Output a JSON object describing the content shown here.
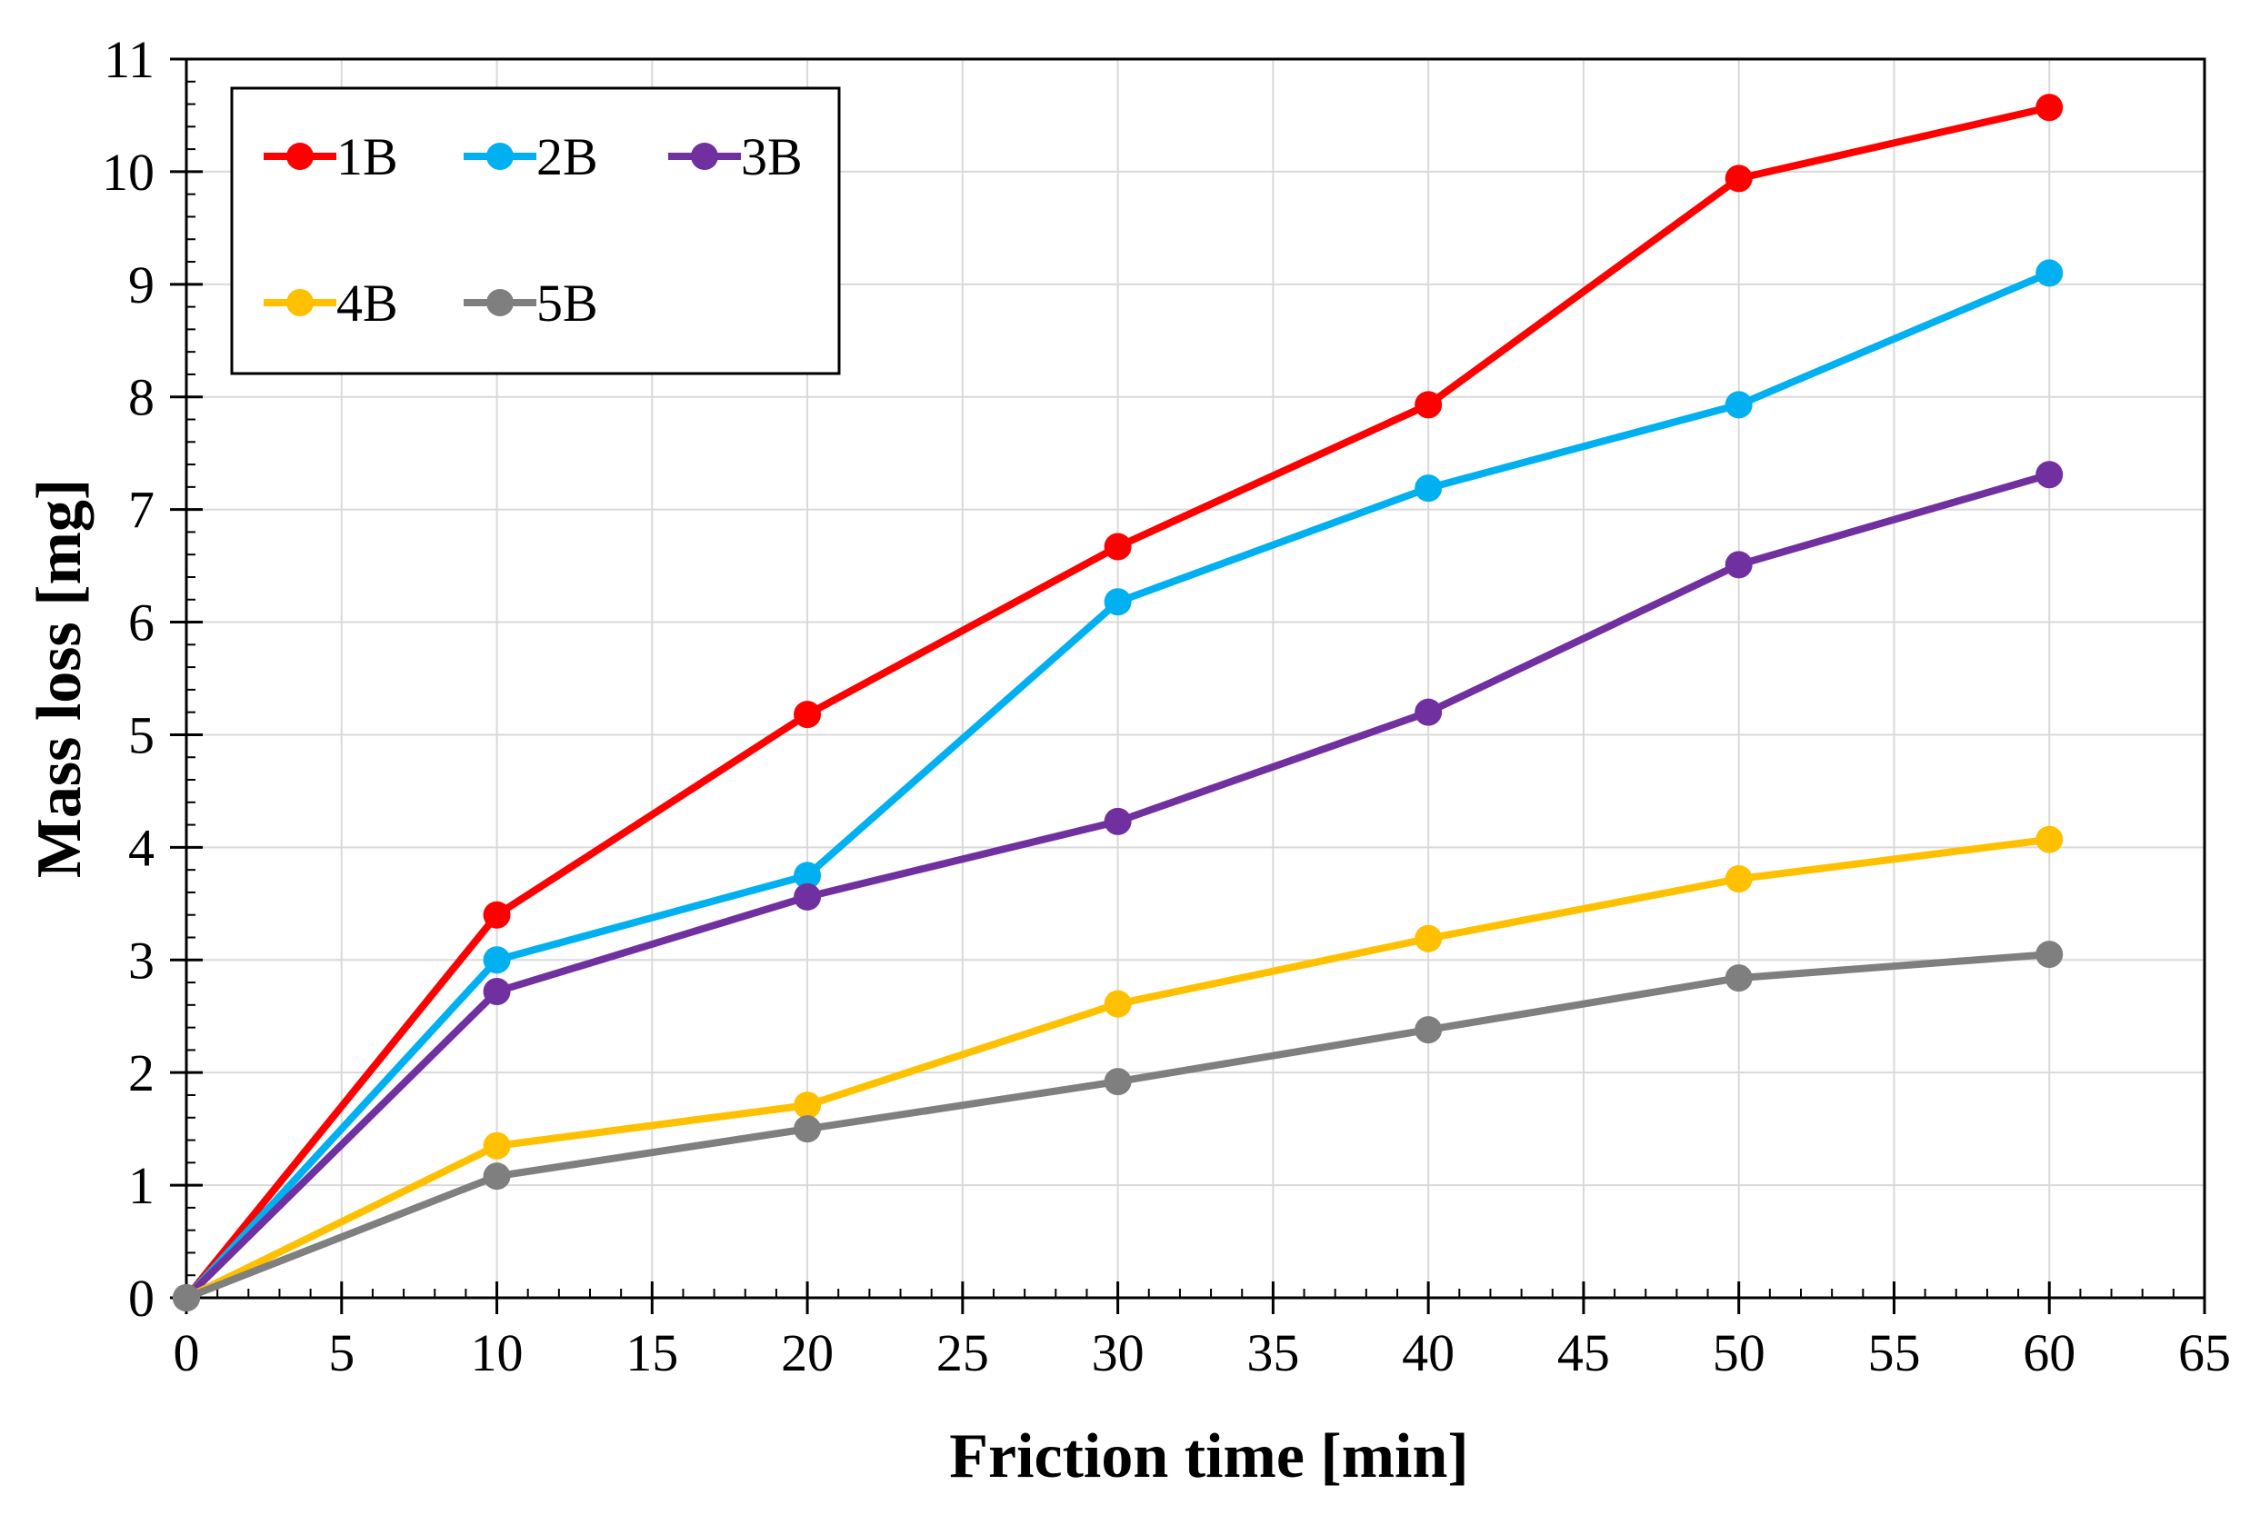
{
  "chart_data": {
    "type": "line",
    "title": "",
    "xlabel": "Friction time [min]",
    "ylabel": "Mass loss [mg]",
    "xlim": [
      0,
      65
    ],
    "ylim": [
      0,
      11
    ],
    "xticks": [
      0,
      5,
      10,
      15,
      20,
      25,
      30,
      35,
      40,
      45,
      50,
      55,
      60,
      65
    ],
    "yticks": [
      0,
      1,
      2,
      3,
      4,
      5,
      6,
      7,
      8,
      9,
      10,
      11
    ],
    "grid": true,
    "legend_position": "top-left",
    "x": [
      0,
      10,
      20,
      30,
      40,
      50,
      60
    ],
    "series": [
      {
        "name": "1B",
        "color": "#ff0000",
        "values": [
          0,
          3.4,
          5.18,
          6.67,
          7.93,
          9.94,
          10.57
        ]
      },
      {
        "name": "2B",
        "color": "#00b0f0",
        "values": [
          0,
          3.0,
          3.75,
          6.18,
          7.19,
          7.93,
          9.1
        ]
      },
      {
        "name": "3B",
        "color": "#7030a0",
        "values": [
          0,
          2.72,
          3.56,
          4.23,
          5.2,
          6.51,
          7.31
        ]
      },
      {
        "name": "4B",
        "color": "#ffc000",
        "values": [
          0,
          1.35,
          1.71,
          2.61,
          3.19,
          3.72,
          4.07
        ]
      },
      {
        "name": "5B",
        "color": "#7f7f7f",
        "values": [
          0,
          1.08,
          1.5,
          1.92,
          2.38,
          2.84,
          3.05
        ]
      }
    ]
  }
}
